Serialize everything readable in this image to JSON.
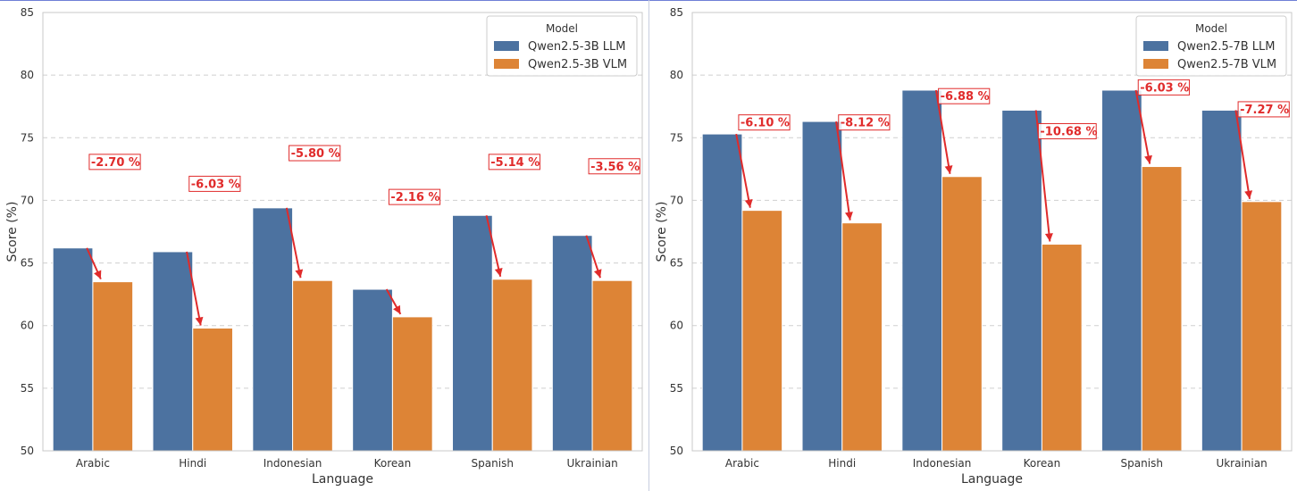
{
  "chart_data": [
    {
      "type": "bar",
      "categories": [
        "Arabic",
        "Hindi",
        "Indonesian",
        "Korean",
        "Spanish",
        "Ukrainian"
      ],
      "series": [
        {
          "name": "Qwen2.5-3B LLM",
          "color": "#4c72a0",
          "values": [
            66.2,
            65.9,
            69.4,
            62.9,
            68.8,
            67.2
          ]
        },
        {
          "name": "Qwen2.5-3B VLM",
          "color": "#dd8436",
          "values": [
            63.5,
            59.8,
            63.6,
            60.7,
            63.7,
            63.6
          ]
        }
      ],
      "annotations": [
        "-2.70 %",
        "-6.03 %",
        "-5.80 %",
        "-2.16 %",
        "-5.14 %",
        "-3.56 %"
      ],
      "legend_title": "Model",
      "legend_position": "upper right",
      "xlabel": "Language",
      "ylabel": "Score (%)",
      "ylim": [
        50,
        85
      ],
      "yticks": [
        50,
        55,
        60,
        65,
        70,
        75,
        80,
        85
      ],
      "grid": "horizontal dashed",
      "annotation_color": "#e02b2b"
    },
    {
      "type": "bar",
      "categories": [
        "Arabic",
        "Hindi",
        "Indonesian",
        "Korean",
        "Spanish",
        "Ukrainian"
      ],
      "series": [
        {
          "name": "Qwen2.5-7B LLM",
          "color": "#4c72a0",
          "values": [
            75.3,
            76.3,
            78.8,
            77.2,
            78.8,
            77.2
          ]
        },
        {
          "name": "Qwen2.5-7B VLM",
          "color": "#dd8436",
          "values": [
            69.2,
            68.2,
            71.9,
            66.5,
            72.7,
            69.9
          ]
        }
      ],
      "annotations": [
        "-6.10 %",
        "-8.12 %",
        "-6.88 %",
        "-10.68 %",
        "-6.03 %",
        "-7.27 %"
      ],
      "legend_title": "Model",
      "legend_position": "upper right",
      "xlabel": "Language",
      "ylabel": "Score (%)",
      "ylim": [
        50,
        85
      ],
      "yticks": [
        50,
        55,
        60,
        65,
        70,
        75,
        80,
        85
      ],
      "grid": "horizontal dashed",
      "annotation_color": "#e02b2b"
    }
  ]
}
